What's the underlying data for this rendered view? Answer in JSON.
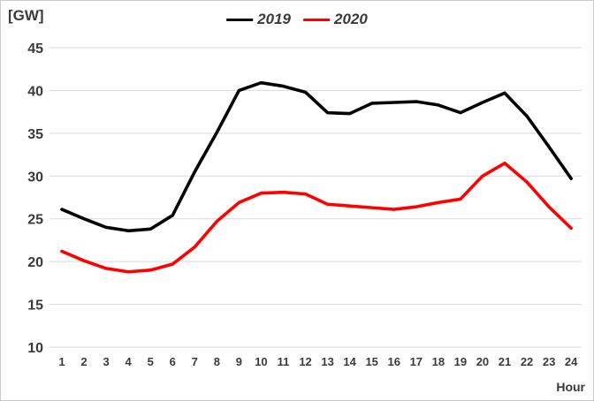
{
  "chart_data": {
    "type": "line",
    "title": "",
    "ylabel": "[GW]",
    "xlabel": "Hour",
    "x": [
      1,
      2,
      3,
      4,
      5,
      6,
      7,
      8,
      9,
      10,
      11,
      12,
      13,
      14,
      15,
      16,
      17,
      18,
      19,
      20,
      21,
      22,
      23,
      24
    ],
    "ylim": [
      10,
      45
    ],
    "yticks": [
      10,
      15,
      20,
      25,
      30,
      35,
      40,
      45
    ],
    "grid": true,
    "legend_position": "top-center",
    "series": [
      {
        "name": "2019",
        "color": "#000000",
        "values": [
          26.1,
          25.0,
          24.0,
          23.6,
          23.8,
          25.4,
          30.5,
          35.1,
          40.0,
          40.9,
          40.5,
          39.8,
          37.4,
          37.3,
          38.5,
          38.6,
          38.7,
          38.3,
          37.4,
          38.6,
          39.7,
          37.0,
          33.4,
          29.7
        ]
      },
      {
        "name": "2020",
        "color": "#ff0000",
        "values": [
          21.2,
          20.1,
          19.2,
          18.8,
          19.0,
          19.7,
          21.7,
          24.7,
          26.9,
          28.0,
          28.1,
          27.9,
          26.7,
          26.5,
          26.3,
          26.1,
          26.4,
          26.9,
          27.3,
          30.0,
          31.5,
          29.3,
          26.4,
          23.9
        ]
      }
    ]
  },
  "colors": {
    "gridline": "#d9d9d9",
    "axis_text": "#3a3a3a",
    "background": "#ffffff"
  }
}
